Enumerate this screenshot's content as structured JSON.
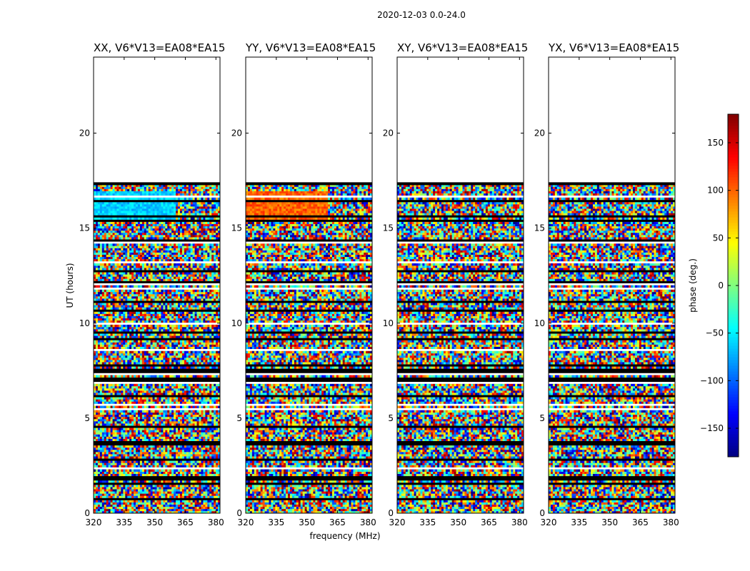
{
  "figure": {
    "suptitle": "2020-12-03 0.0-24.0"
  },
  "colors": {
    "jet_low": "#00007f",
    "jet_mid": "#7fff7f",
    "jet_high": "#7f0000",
    "flagged": "#000000",
    "no_data": "#ffffff"
  },
  "chart_data": [
    {
      "type": "heatmap",
      "title": "XX, V6*V13=EA08*EA15",
      "xlabel": "",
      "ylabel": "UT (hours)",
      "xlim": [
        320,
        382
      ],
      "ylim": [
        0,
        24
      ],
      "xticks": [
        "320",
        "335",
        "350",
        "365",
        "380"
      ],
      "yticks": [
        "0",
        "5",
        "10",
        "15",
        "20"
      ],
      "data_extent_hours": [
        0,
        17.3
      ],
      "structured_block": {
        "t_range": [
          15.5,
          17.0
        ],
        "freq_range": [
          320,
          360
        ],
        "phase_deg": -60
      }
    },
    {
      "type": "heatmap",
      "title": "YY, V6*V13=EA08*EA15",
      "xlabel": "frequency (MHz)",
      "ylabel": "",
      "xlim": [
        320,
        382
      ],
      "ylim": [
        0,
        24
      ],
      "xticks": [
        "320",
        "335",
        "350",
        "365",
        "380"
      ],
      "yticks": [
        "0",
        "5",
        "10",
        "15",
        "20"
      ],
      "data_extent_hours": [
        0,
        17.3
      ],
      "structured_block": {
        "t_range": [
          15.5,
          17.0
        ],
        "freq_range": [
          320,
          360
        ],
        "phase_deg": 100
      }
    },
    {
      "type": "heatmap",
      "title": "XY, V6*V13=EA08*EA15",
      "xlabel": "",
      "ylabel": "",
      "xlim": [
        320,
        382
      ],
      "ylim": [
        0,
        24
      ],
      "xticks": [
        "320",
        "335",
        "350",
        "365",
        "380"
      ],
      "yticks": [
        "0",
        "5",
        "10",
        "15",
        "20"
      ],
      "data_extent_hours": [
        0,
        17.3
      ]
    },
    {
      "type": "heatmap",
      "title": "YX, V6*V13=EA08*EA15",
      "xlabel": "",
      "ylabel": "",
      "xlim": [
        320,
        382
      ],
      "ylim": [
        0,
        24
      ],
      "xticks": [
        "320",
        "335",
        "350",
        "365",
        "380"
      ],
      "yticks": [
        "0",
        "5",
        "10",
        "15",
        "20"
      ],
      "data_extent_hours": [
        0,
        17.3
      ]
    }
  ],
  "colorbar": {
    "label": "phase (deg.)",
    "range": [
      -180,
      180
    ],
    "ticks": [
      "150",
      "100",
      "50",
      "0",
      "−50",
      "−100",
      "−150"
    ],
    "tick_values": [
      150,
      100,
      50,
      0,
      -50,
      -100,
      -150
    ],
    "colormap": "jet"
  }
}
